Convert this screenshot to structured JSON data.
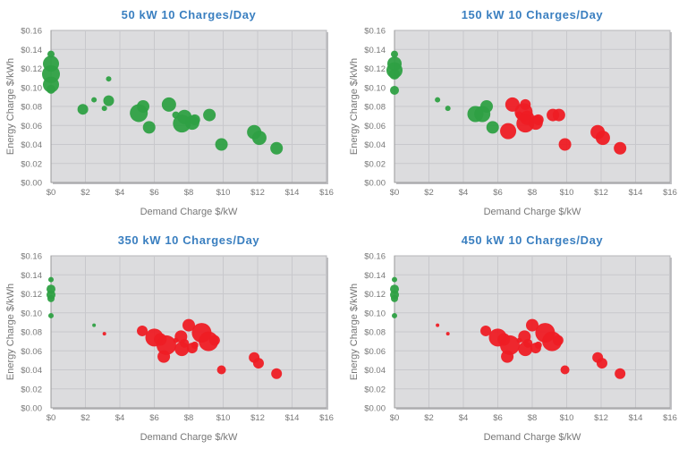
{
  "colors": {
    "green": "#2ea043",
    "red": "#ee1c24",
    "plot_bg": "#dcdcde",
    "grid": "#c8c8cc",
    "title": "#3a7fc0"
  },
  "chart_data": [
    {
      "type": "scatter",
      "title": "50 kW 10 Charges/Day",
      "xlabel": "Demand Charge $/kW",
      "ylabel": "Energy Charge $/kWh",
      "xlim": [
        0,
        16
      ],
      "ylim": [
        0,
        0.16
      ],
      "xticks": [
        "$0",
        "$2",
        "$4",
        "$6",
        "$8",
        "$10",
        "$12",
        "$14",
        "$16"
      ],
      "yticks": [
        "$0.00",
        "$0.02",
        "$0.04",
        "$0.06",
        "$0.08",
        "$0.10",
        "$0.12",
        "$0.14",
        "$0.16"
      ],
      "grid": true,
      "points": [
        {
          "x": 0,
          "y": 0.135,
          "size": 4,
          "color": "green"
        },
        {
          "x": 0,
          "y": 0.125,
          "size": 9,
          "color": "green"
        },
        {
          "x": 0,
          "y": 0.114,
          "size": 10,
          "color": "green"
        },
        {
          "x": 0,
          "y": 0.103,
          "size": 9,
          "color": "green"
        },
        {
          "x": 0,
          "y": 0.098,
          "size": 5,
          "color": "green"
        },
        {
          "x": 3.35,
          "y": 0.109,
          "size": 3,
          "color": "green"
        },
        {
          "x": 2.5,
          "y": 0.087,
          "size": 3,
          "color": "green"
        },
        {
          "x": 3.35,
          "y": 0.086,
          "size": 6,
          "color": "green"
        },
        {
          "x": 1.85,
          "y": 0.077,
          "size": 6,
          "color": "green"
        },
        {
          "x": 3.1,
          "y": 0.078,
          "size": 3,
          "color": "green"
        },
        {
          "x": 5.35,
          "y": 0.08,
          "size": 7,
          "color": "green"
        },
        {
          "x": 5.1,
          "y": 0.073,
          "size": 10,
          "color": "green"
        },
        {
          "x": 5.7,
          "y": 0.058,
          "size": 7,
          "color": "green"
        },
        {
          "x": 6.85,
          "y": 0.082,
          "size": 8,
          "color": "green"
        },
        {
          "x": 7.25,
          "y": 0.071,
          "size": 4,
          "color": "green"
        },
        {
          "x": 7.75,
          "y": 0.069,
          "size": 8,
          "color": "green"
        },
        {
          "x": 7.6,
          "y": 0.062,
          "size": 10,
          "color": "green"
        },
        {
          "x": 8.2,
          "y": 0.063,
          "size": 8,
          "color": "green"
        },
        {
          "x": 8.35,
          "y": 0.066,
          "size": 6,
          "color": "green"
        },
        {
          "x": 9.2,
          "y": 0.071,
          "size": 7,
          "color": "green"
        },
        {
          "x": 9.9,
          "y": 0.04,
          "size": 7,
          "color": "green"
        },
        {
          "x": 11.8,
          "y": 0.053,
          "size": 8,
          "color": "green"
        },
        {
          "x": 12.1,
          "y": 0.047,
          "size": 8,
          "color": "green"
        },
        {
          "x": 13.1,
          "y": 0.036,
          "size": 7,
          "color": "green"
        }
      ]
    },
    {
      "type": "scatter",
      "title": "150 kW 10 Charges/Day",
      "xlabel": "Demand Charge $/kW",
      "ylabel": "Energy Charge $/kWh",
      "xlim": [
        0,
        16
      ],
      "ylim": [
        0,
        0.16
      ],
      "xticks": [
        "$0",
        "$2",
        "$4",
        "$6",
        "$8",
        "$10",
        "$12",
        "$14",
        "$16"
      ],
      "yticks": [
        "$0.00",
        "$0.02",
        "$0.04",
        "$0.06",
        "$0.08",
        "$0.10",
        "$0.12",
        "$0.14",
        "$0.16"
      ],
      "grid": true,
      "points": [
        {
          "x": 0,
          "y": 0.135,
          "size": 4,
          "color": "green"
        },
        {
          "x": 0,
          "y": 0.125,
          "size": 8,
          "color": "green"
        },
        {
          "x": 0,
          "y": 0.118,
          "size": 9,
          "color": "green"
        },
        {
          "x": 0,
          "y": 0.114,
          "size": 6,
          "color": "green"
        },
        {
          "x": 0,
          "y": 0.097,
          "size": 5,
          "color": "green"
        },
        {
          "x": 2.5,
          "y": 0.087,
          "size": 3,
          "color": "green"
        },
        {
          "x": 3.1,
          "y": 0.078,
          "size": 3,
          "color": "green"
        },
        {
          "x": 4.7,
          "y": 0.072,
          "size": 9,
          "color": "green"
        },
        {
          "x": 5.1,
          "y": 0.072,
          "size": 9,
          "color": "green"
        },
        {
          "x": 5.35,
          "y": 0.08,
          "size": 7,
          "color": "green"
        },
        {
          "x": 5.7,
          "y": 0.058,
          "size": 7,
          "color": "green"
        },
        {
          "x": 6.85,
          "y": 0.082,
          "size": 8,
          "color": "red"
        },
        {
          "x": 6.6,
          "y": 0.054,
          "size": 9,
          "color": "red"
        },
        {
          "x": 7.6,
          "y": 0.082,
          "size": 6,
          "color": "red"
        },
        {
          "x": 7.5,
          "y": 0.074,
          "size": 10,
          "color": "red"
        },
        {
          "x": 7.25,
          "y": 0.071,
          "size": 4,
          "color": "red"
        },
        {
          "x": 7.7,
          "y": 0.068,
          "size": 8,
          "color": "red"
        },
        {
          "x": 7.6,
          "y": 0.062,
          "size": 10,
          "color": "red"
        },
        {
          "x": 8.2,
          "y": 0.063,
          "size": 8,
          "color": "red"
        },
        {
          "x": 8.35,
          "y": 0.066,
          "size": 6,
          "color": "red"
        },
        {
          "x": 9.2,
          "y": 0.071,
          "size": 7,
          "color": "red"
        },
        {
          "x": 9.55,
          "y": 0.071,
          "size": 7,
          "color": "red"
        },
        {
          "x": 9.9,
          "y": 0.04,
          "size": 7,
          "color": "red"
        },
        {
          "x": 11.8,
          "y": 0.053,
          "size": 8,
          "color": "red"
        },
        {
          "x": 12.1,
          "y": 0.047,
          "size": 8,
          "color": "red"
        },
        {
          "x": 13.1,
          "y": 0.036,
          "size": 7,
          "color": "red"
        }
      ]
    },
    {
      "type": "scatter",
      "title": "350 kW 10 Charges/Day",
      "xlabel": "Demand Charge $/kW",
      "ylabel": "Energy Charge $/kWh",
      "xlim": [
        0,
        16
      ],
      "ylim": [
        0,
        0.16
      ],
      "xticks": [
        "$0",
        "$2",
        "$4",
        "$6",
        "$8",
        "$10",
        "$12",
        "$14",
        "$16"
      ],
      "yticks": [
        "$0.00",
        "$0.02",
        "$0.04",
        "$0.06",
        "$0.08",
        "$0.10",
        "$0.12",
        "$0.14",
        "$0.16"
      ],
      "grid": true,
      "points": [
        {
          "x": 0,
          "y": 0.135,
          "size": 3,
          "color": "green"
        },
        {
          "x": 0,
          "y": 0.125,
          "size": 5,
          "color": "green"
        },
        {
          "x": 0,
          "y": 0.119,
          "size": 5,
          "color": "green"
        },
        {
          "x": 0,
          "y": 0.115,
          "size": 4,
          "color": "green"
        },
        {
          "x": 0,
          "y": 0.097,
          "size": 3,
          "color": "green"
        },
        {
          "x": 2.5,
          "y": 0.087,
          "size": 2,
          "color": "green"
        },
        {
          "x": 3.1,
          "y": 0.078,
          "size": 2,
          "color": "red"
        },
        {
          "x": 5.3,
          "y": 0.081,
          "size": 6,
          "color": "red"
        },
        {
          "x": 6.0,
          "y": 0.074,
          "size": 10,
          "color": "red"
        },
        {
          "x": 6.35,
          "y": 0.072,
          "size": 7,
          "color": "red"
        },
        {
          "x": 6.7,
          "y": 0.066,
          "size": 11,
          "color": "red"
        },
        {
          "x": 6.55,
          "y": 0.054,
          "size": 7,
          "color": "red"
        },
        {
          "x": 7.25,
          "y": 0.071,
          "size": 3,
          "color": "red"
        },
        {
          "x": 7.55,
          "y": 0.075,
          "size": 7,
          "color": "red"
        },
        {
          "x": 7.75,
          "y": 0.068,
          "size": 5,
          "color": "red"
        },
        {
          "x": 7.6,
          "y": 0.062,
          "size": 8,
          "color": "red"
        },
        {
          "x": 8.0,
          "y": 0.087,
          "size": 7,
          "color": "red"
        },
        {
          "x": 8.2,
          "y": 0.063,
          "size": 6,
          "color": "red"
        },
        {
          "x": 8.35,
          "y": 0.066,
          "size": 4,
          "color": "red"
        },
        {
          "x": 8.75,
          "y": 0.079,
          "size": 11,
          "color": "red"
        },
        {
          "x": 9.15,
          "y": 0.07,
          "size": 11,
          "color": "red"
        },
        {
          "x": 9.5,
          "y": 0.071,
          "size": 6,
          "color": "red"
        },
        {
          "x": 9.9,
          "y": 0.04,
          "size": 5,
          "color": "red"
        },
        {
          "x": 11.8,
          "y": 0.053,
          "size": 6,
          "color": "red"
        },
        {
          "x": 12.05,
          "y": 0.047,
          "size": 6,
          "color": "red"
        },
        {
          "x": 13.1,
          "y": 0.036,
          "size": 6,
          "color": "red"
        }
      ]
    },
    {
      "type": "scatter",
      "title": "450 kW 10 Charges/Day",
      "xlabel": "Demand Charge $/kW",
      "ylabel": "Energy Charge $/kWh",
      "xlim": [
        0,
        16
      ],
      "ylim": [
        0,
        0.16
      ],
      "xticks": [
        "$0",
        "$2",
        "$4",
        "$6",
        "$8",
        "$10",
        "$12",
        "$14",
        "$16"
      ],
      "yticks": [
        "$0.00",
        "$0.02",
        "$0.04",
        "$0.06",
        "$0.08",
        "$0.10",
        "$0.12",
        "$0.14",
        "$0.16"
      ],
      "grid": true,
      "points": [
        {
          "x": 0,
          "y": 0.135,
          "size": 3,
          "color": "green"
        },
        {
          "x": 0,
          "y": 0.125,
          "size": 5,
          "color": "green"
        },
        {
          "x": 0,
          "y": 0.119,
          "size": 5,
          "color": "green"
        },
        {
          "x": 0,
          "y": 0.115,
          "size": 4,
          "color": "green"
        },
        {
          "x": 0,
          "y": 0.097,
          "size": 3,
          "color": "green"
        },
        {
          "x": 2.5,
          "y": 0.087,
          "size": 2,
          "color": "red"
        },
        {
          "x": 3.1,
          "y": 0.078,
          "size": 2,
          "color": "red"
        },
        {
          "x": 5.3,
          "y": 0.081,
          "size": 6,
          "color": "red"
        },
        {
          "x": 6.0,
          "y": 0.074,
          "size": 10,
          "color": "red"
        },
        {
          "x": 6.35,
          "y": 0.072,
          "size": 7,
          "color": "red"
        },
        {
          "x": 6.7,
          "y": 0.066,
          "size": 11,
          "color": "red"
        },
        {
          "x": 6.55,
          "y": 0.054,
          "size": 7,
          "color": "red"
        },
        {
          "x": 7.25,
          "y": 0.071,
          "size": 3,
          "color": "red"
        },
        {
          "x": 7.55,
          "y": 0.075,
          "size": 7,
          "color": "red"
        },
        {
          "x": 7.75,
          "y": 0.068,
          "size": 5,
          "color": "red"
        },
        {
          "x": 7.6,
          "y": 0.062,
          "size": 8,
          "color": "red"
        },
        {
          "x": 8.0,
          "y": 0.087,
          "size": 7,
          "color": "red"
        },
        {
          "x": 8.2,
          "y": 0.063,
          "size": 6,
          "color": "red"
        },
        {
          "x": 8.35,
          "y": 0.066,
          "size": 4,
          "color": "red"
        },
        {
          "x": 8.75,
          "y": 0.079,
          "size": 11,
          "color": "red"
        },
        {
          "x": 9.15,
          "y": 0.07,
          "size": 11,
          "color": "red"
        },
        {
          "x": 9.5,
          "y": 0.071,
          "size": 6,
          "color": "red"
        },
        {
          "x": 9.9,
          "y": 0.04,
          "size": 5,
          "color": "red"
        },
        {
          "x": 11.8,
          "y": 0.053,
          "size": 6,
          "color": "red"
        },
        {
          "x": 12.05,
          "y": 0.047,
          "size": 6,
          "color": "red"
        },
        {
          "x": 13.1,
          "y": 0.036,
          "size": 6,
          "color": "red"
        }
      ]
    }
  ]
}
